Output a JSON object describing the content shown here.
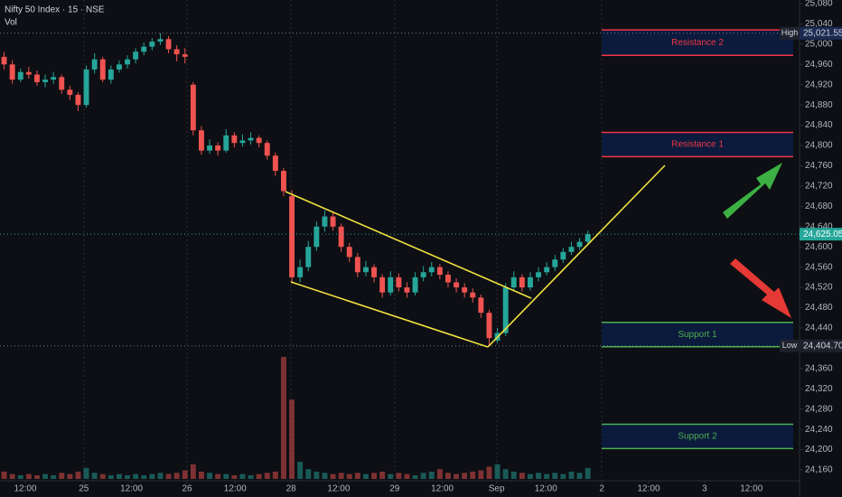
{
  "chart_data": {
    "type": "candlestick",
    "title": "Nifty 50 Index · 15 · NSE",
    "volume_label": "Vol",
    "up_color": "#26a69a",
    "down_color": "#ef5350",
    "open": [
      24975,
      24960,
      24930,
      24945,
      24940,
      24925,
      24930,
      24935,
      24910,
      24900,
      24880,
      24950,
      24970,
      24930,
      24950,
      24960,
      24970,
      24985,
      24995,
      25005,
      25010,
      24990,
      24980,
      24920,
      24830,
      24790,
      24800,
      24790,
      24820,
      24805,
      24810,
      24815,
      24805,
      24780,
      24750,
      24700,
      24540,
      24560,
      24600,
      24640,
      24660,
      24640,
      24600,
      24580,
      24550,
      24560,
      24540,
      24510,
      24540,
      24520,
      24510,
      24540,
      24550,
      24560,
      24545,
      24530,
      24520,
      24510,
      24500,
      24470,
      24415,
      24430,
      24520,
      24540,
      24520,
      24540,
      24550,
      24560,
      24575,
      24590,
      24600,
      24610
    ],
    "high": [
      24985,
      24968,
      24952,
      24955,
      24948,
      24940,
      24945,
      24940,
      24918,
      24905,
      24958,
      24982,
      24975,
      24958,
      24968,
      24978,
      24992,
      25003,
      25012,
      25021.55,
      25016,
      24998,
      24992,
      24925,
      24838,
      24812,
      24806,
      24832,
      24826,
      24822,
      24826,
      24820,
      24810,
      24786,
      24756,
      24712,
      24575,
      24612,
      24650,
      24672,
      24668,
      24646,
      24608,
      24588,
      24572,
      24566,
      24546,
      24552,
      24548,
      24530,
      24550,
      24562,
      24570,
      24566,
      24552,
      24538,
      24528,
      24518,
      24506,
      24476,
      24440,
      24528,
      24552,
      24546,
      24550,
      24560,
      24570,
      24584,
      24598,
      24610,
      24618,
      24632
    ],
    "low": [
      24950,
      24922,
      24925,
      24932,
      24918,
      24915,
      24922,
      24902,
      24890,
      24868,
      24875,
      24942,
      24925,
      24922,
      24944,
      24952,
      24962,
      24978,
      24988,
      24998,
      24982,
      24966,
      24962,
      24820,
      24782,
      24784,
      24780,
      24786,
      24796,
      24798,
      24802,
      24796,
      24772,
      24740,
      24700,
      24528,
      24530,
      24552,
      24592,
      24630,
      24632,
      24590,
      24570,
      24540,
      24542,
      24530,
      24500,
      24504,
      24512,
      24500,
      24504,
      24532,
      24542,
      24536,
      24520,
      24510,
      24500,
      24490,
      24460,
      24404.7,
      24410,
      24424,
      24512,
      24512,
      24514,
      24532,
      24544,
      24552,
      24568,
      24584,
      24594,
      24604
    ],
    "close": [
      24960,
      24930,
      24945,
      24940,
      24925,
      24930,
      24935,
      24910,
      24900,
      24880,
      24950,
      24970,
      24930,
      24950,
      24960,
      24970,
      24985,
      24995,
      25005,
      25010,
      24990,
      24980,
      24975,
      24830,
      24790,
      24800,
      24790,
      24820,
      24805,
      24810,
      24815,
      24805,
      24780,
      24750,
      24710,
      24540,
      24560,
      24600,
      24640,
      24660,
      24640,
      24600,
      24580,
      24550,
      24560,
      24540,
      24510,
      24540,
      24520,
      24510,
      24540,
      24550,
      24560,
      24545,
      24530,
      24520,
      24510,
      24500,
      24470,
      24420,
      24430,
      24520,
      24540,
      24520,
      24540,
      24550,
      24560,
      24575,
      24590,
      24600,
      24610,
      24625.05
    ],
    "volume": [
      6,
      4,
      3,
      4,
      3,
      4,
      3,
      5,
      4,
      6,
      9,
      5,
      4,
      3,
      4,
      3,
      4,
      3,
      4,
      5,
      4,
      5,
      7,
      12,
      6,
      5,
      4,
      4,
      3,
      4,
      3,
      4,
      5,
      6,
      100,
      65,
      14,
      8,
      6,
      5,
      4,
      5,
      4,
      5,
      4,
      5,
      6,
      4,
      5,
      4,
      3,
      5,
      6,
      8,
      5,
      4,
      5,
      6,
      7,
      10,
      12,
      8,
      6,
      5,
      4,
      5,
      4,
      5,
      4,
      6,
      5,
      9
    ],
    "vlim": [
      0,
      100
    ],
    "xlim": [
      -0.5,
      96.75
    ],
    "xticks": [
      {
        "value": 2.58,
        "label": "12:00"
      },
      {
        "value": 9.7,
        "label": "25"
      },
      {
        "value": 15.5,
        "label": "12:00"
      },
      {
        "value": 22.25,
        "label": "26"
      },
      {
        "value": 28.1,
        "label": "12:00"
      },
      {
        "value": 34.9,
        "label": "28"
      },
      {
        "value": 40.7,
        "label": "12:00"
      },
      {
        "value": 47.5,
        "label": "29"
      },
      {
        "value": 53.3,
        "label": "12:00"
      },
      {
        "value": 59.9,
        "label": "Sep"
      },
      {
        "value": 65.9,
        "label": "12:00"
      },
      {
        "value": 72.7,
        "label": "2"
      },
      {
        "value": 78.4,
        "label": "12:00"
      },
      {
        "value": 85.2,
        "label": "3"
      },
      {
        "value": 90.9,
        "label": "12:00"
      }
    ],
    "ylim": [
      24147.5,
      25087.1
    ],
    "yticks": [
      {
        "value": 24160,
        "label": "24,160"
      },
      {
        "value": 24200,
        "label": "24,200"
      },
      {
        "value": 24240,
        "label": "24,240"
      },
      {
        "value": 24280,
        "label": "24,280"
      },
      {
        "value": 24320,
        "label": "24,320"
      },
      {
        "value": 24360,
        "label": "24,360"
      },
      {
        "value": 24440,
        "label": "24,440"
      },
      {
        "value": 24480,
        "label": "24,480"
      },
      {
        "value": 24520,
        "label": "24,520"
      },
      {
        "value": 24560,
        "label": "24,560"
      },
      {
        "value": 24600,
        "label": "24,600"
      },
      {
        "value": 24640,
        "label": "24,640"
      },
      {
        "value": 24680,
        "label": "24,680"
      },
      {
        "value": 24720,
        "label": "24,720"
      },
      {
        "value": 24760,
        "label": "24,760"
      },
      {
        "value": 24800,
        "label": "24,800"
      },
      {
        "value": 24840,
        "label": "24,840"
      },
      {
        "value": 24880,
        "label": "24,880"
      },
      {
        "value": 24920,
        "label": "24,920"
      },
      {
        "value": 24960,
        "label": "24,960"
      },
      {
        "value": 25000,
        "label": "25,000"
      },
      {
        "value": 25040,
        "label": "25,040"
      },
      {
        "value": 25080,
        "label": "25,080"
      }
    ],
    "zones": [
      {
        "label": "Resistance 2",
        "low": 24978,
        "high": 25028,
        "color": "#f23645"
      },
      {
        "label": "Resistance 1",
        "low": 24778,
        "high": 24826,
        "color": "#f23645"
      },
      {
        "label": "Support 1",
        "low": 24403,
        "high": 24451,
        "color": "#4caf50"
      },
      {
        "label": "Support 2",
        "low": 24202,
        "high": 24250,
        "color": "#4caf50"
      }
    ],
    "high_tag": "High",
    "high_price": {
      "value": 25021.55,
      "label": "25,021.55"
    },
    "low_tag": "Low",
    "low_price": {
      "value": 24404.7,
      "label": "24,404.70"
    },
    "last_price": {
      "value": 24625.05,
      "label": "24,625.05"
    }
  }
}
